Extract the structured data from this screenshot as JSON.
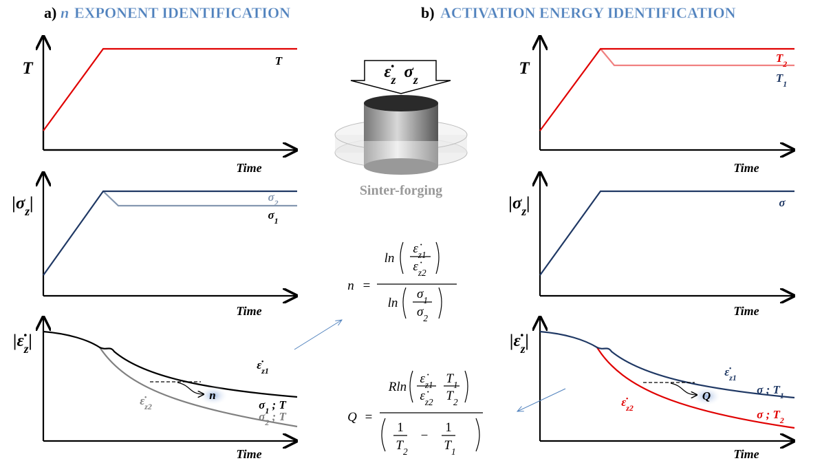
{
  "panel_a": {
    "letter": "a)",
    "title_symbol": "n",
    "title": "EXPONENT IDENTIFICATION",
    "temperature": {
      "axis": "T",
      "time": "Time",
      "curve": "T"
    },
    "stress": {
      "axis": "|σ",
      "axis_sub": "z",
      "axis_end": "|",
      "time": "Time",
      "curve_2": "σ",
      "curve_2_sub": "2",
      "curve_1": "σ",
      "curve_1_sub": "1"
    },
    "strain_rate": {
      "axis": "|ε̇",
      "axis_sub": "z",
      "axis_end": "|",
      "time": "Time",
      "rate_1": "ε̇",
      "rate_1_sub": "z1",
      "rate_2": "ε̇",
      "rate_2_sub": "z2",
      "result": "n",
      "curve_1": "σ",
      "curve_1_sub": "1",
      "curve_1_cond": " ; T",
      "curve_2": "σ",
      "curve_2_sub": "2",
      "curve_2_cond": " ; T"
    }
  },
  "panel_b": {
    "letter": "b)",
    "title": "ACTIVATION ENERGY IDENTIFICATION",
    "temperature": {
      "axis": "T",
      "time": "Time",
      "curve_2": "T",
      "curve_2_sub": "2",
      "curve_1": "T",
      "curve_1_sub": "1"
    },
    "stress": {
      "axis": "|σ",
      "axis_sub": "z",
      "axis_end": "|",
      "time": "Time",
      "curve": "σ"
    },
    "strain_rate": {
      "axis": "|ε̇",
      "axis_sub": "z",
      "axis_end": "|",
      "time": "Time",
      "rate_1": "ε̇",
      "rate_1_sub": "z1",
      "rate_2": "ε̇",
      "rate_2_sub": "z2",
      "result": "Q",
      "curve_1": "σ ; T",
      "curve_1_sub": "1",
      "curve_2": "σ ; T",
      "curve_2_sub": "2"
    }
  },
  "sample": {
    "load_rate": "ε̇",
    "load_rate_sub": "z",
    "load_stress": "σ",
    "load_stress_sub": "z",
    "caption": "Sinter-forging"
  },
  "formula_n": {
    "lhs": "n",
    "equals": "=",
    "num_fn": "ln",
    "num_top": "ε̇",
    "num_top_sub": "z1",
    "num_bottom": "ε̇",
    "num_bottom_sub": "z2",
    "den_fn": "ln",
    "den_top": "σ",
    "den_top_sub": "1",
    "den_bottom": "σ",
    "den_bottom_sub": "2"
  },
  "formula_q": {
    "lhs": "Q",
    "equals": "=",
    "num_fn": "Rln",
    "rate_top": "ε̇",
    "rate_top_sub": "z1",
    "rate_bottom": "ε̇",
    "rate_bottom_sub": "z2",
    "temp_top": "T",
    "temp_top_sub": "1",
    "temp_bottom": "T",
    "temp_bottom_sub": "2",
    "den_one_a": "1",
    "den_temp_a": "T",
    "den_temp_a_sub": "2",
    "minus": "−",
    "den_one_b": "1",
    "den_temp_b": "T",
    "den_temp_b_sub": "1"
  }
}
